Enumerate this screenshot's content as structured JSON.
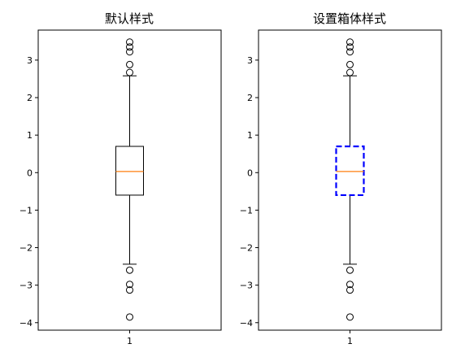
{
  "chart_data": [
    {
      "type": "box",
      "title": "默认样式",
      "xlabel": "",
      "ylabel": "",
      "categories": [
        "1"
      ],
      "ylim": [
        -4.2,
        3.8
      ],
      "yticks": [
        3,
        2,
        1,
        0,
        -1,
        -2,
        -3,
        -4
      ],
      "ytick_labels": [
        "3",
        "2",
        "1",
        "0",
        "−1",
        "−2",
        "−3",
        "−4"
      ],
      "box": {
        "q1": -0.6,
        "median": 0.03,
        "q3": 0.7,
        "whisker_low": -2.44,
        "whisker_high": 2.58
      },
      "fliers": [
        3.48,
        3.35,
        3.22,
        2.88,
        2.67,
        -2.6,
        -2.98,
        -3.13,
        -3.85
      ],
      "box_color": "#000000",
      "box_style": "solid",
      "median_color": "#ff7f0e",
      "grid": false
    },
    {
      "type": "box",
      "title": "设置箱体样式",
      "xlabel": "",
      "ylabel": "",
      "categories": [
        "1"
      ],
      "ylim": [
        -4.2,
        3.8
      ],
      "yticks": [
        3,
        2,
        1,
        0,
        -1,
        -2,
        -3,
        -4
      ],
      "ytick_labels": [
        "3",
        "2",
        "1",
        "0",
        "−1",
        "−2",
        "−3",
        "−4"
      ],
      "box": {
        "q1": -0.6,
        "median": 0.03,
        "q3": 0.7,
        "whisker_low": -2.44,
        "whisker_high": 2.58
      },
      "fliers": [
        3.48,
        3.35,
        3.22,
        2.88,
        2.67,
        -2.6,
        -2.98,
        -3.13,
        -3.85
      ],
      "box_color": "#0000ff",
      "box_style": "dashed",
      "median_color": "#ff7f0e",
      "grid": false
    }
  ]
}
